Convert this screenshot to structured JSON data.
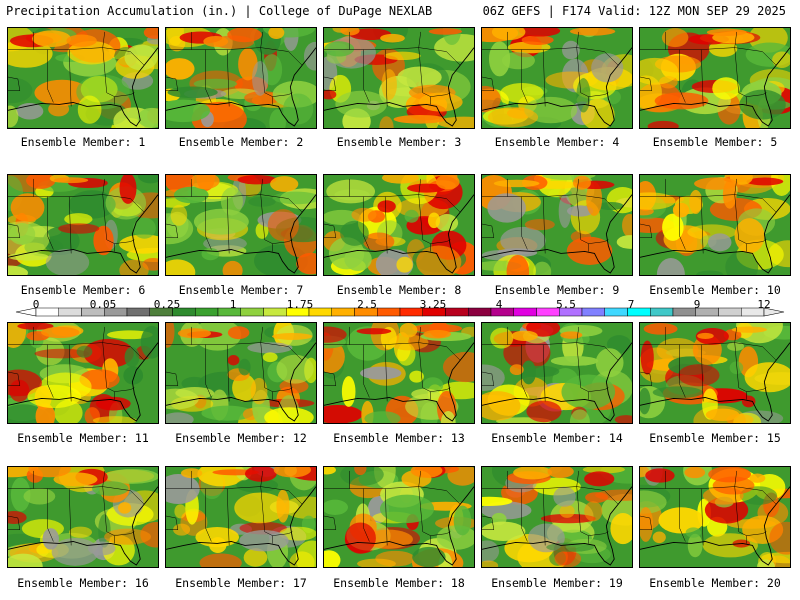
{
  "header": {
    "left": "Precipitation Accumulation (in.) | College of DuPage NEXLAB",
    "right": "06Z GEFS | F174 Valid: 12Z MON SEP 29 2025"
  },
  "panels": [
    {
      "caption": "Ensemble Member: 1"
    },
    {
      "caption": "Ensemble Member: 2"
    },
    {
      "caption": "Ensemble Member: 3"
    },
    {
      "caption": "Ensemble Member: 4"
    },
    {
      "caption": "Ensemble Member: 5"
    },
    {
      "caption": "Ensemble Member: 6"
    },
    {
      "caption": "Ensemble Member: 7"
    },
    {
      "caption": "Ensemble Member: 8"
    },
    {
      "caption": "Ensemble Member: 9"
    },
    {
      "caption": "Ensemble Member: 10"
    },
    {
      "caption": "Ensemble Member: 11"
    },
    {
      "caption": "Ensemble Member: 12"
    },
    {
      "caption": "Ensemble Member: 13"
    },
    {
      "caption": "Ensemble Member: 14"
    },
    {
      "caption": "Ensemble Member: 15"
    },
    {
      "caption": "Ensemble Member: 16"
    },
    {
      "caption": "Ensemble Member: 17"
    },
    {
      "caption": "Ensemble Member: 18"
    },
    {
      "caption": "Ensemble Member: 19"
    },
    {
      "caption": "Ensemble Member: 20"
    }
  ],
  "colorbar": {
    "labels": [
      "0",
      "0.05",
      "0.25",
      "1",
      "1.75",
      "2.5",
      "3.25",
      "4",
      "5.5",
      "7",
      "9",
      "12"
    ],
    "colors": [
      "#ffffff",
      "#dcdcdc",
      "#bdbdbd",
      "#9a9a9a",
      "#707070",
      "#4e7f3b",
      "#2e8b2e",
      "#3aa12f",
      "#58b83a",
      "#8fd13f",
      "#c7e83f",
      "#ffff00",
      "#ffd800",
      "#ffb000",
      "#ff8c00",
      "#ff5a00",
      "#ff2a00",
      "#e00000",
      "#b8001e",
      "#8c0040",
      "#b4008c",
      "#e000e0",
      "#ff40ff",
      "#b070ff",
      "#8080ff",
      "#40d8ff",
      "#00ffff",
      "#40c8c8",
      "#909090",
      "#b0b0b0",
      "#d0d0d0",
      "#e8e8e8"
    ]
  }
}
